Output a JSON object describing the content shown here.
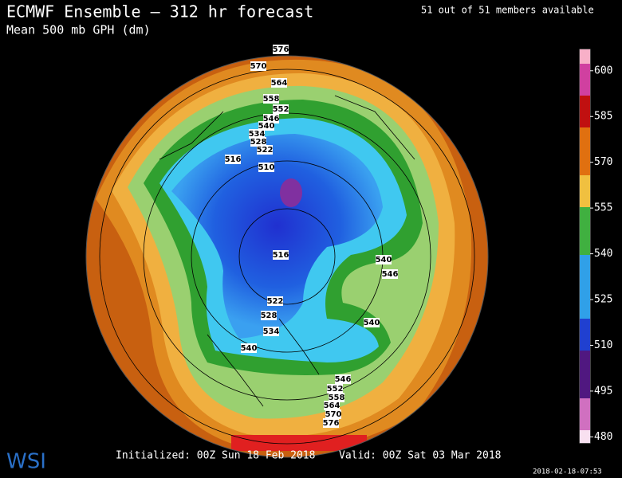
{
  "header": {
    "title": "ECMWF Ensemble — 312 hr forecast",
    "subtitle": "Mean 500 mb GPH (dm)",
    "members": "51 out of 51 members available"
  },
  "map": {
    "contour_labels": [
      576,
      570,
      564,
      558,
      552,
      546,
      540,
      534,
      528,
      522,
      516,
      510,
      516,
      540,
      546,
      522,
      528,
      534,
      540,
      540,
      546,
      552,
      558,
      564,
      570,
      576
    ]
  },
  "legend": {
    "range": [
      478,
      607
    ],
    "ticks": [
      600,
      585,
      570,
      555,
      540,
      525,
      510,
      495,
      480
    ]
  },
  "footer": {
    "logo": "WSI",
    "initialized": "Initialized: 00Z Sun 18 Feb 2018",
    "valid": "Valid: 00Z Sat 03 Mar 2018",
    "timestamp": "2018-02-18-07:53"
  }
}
